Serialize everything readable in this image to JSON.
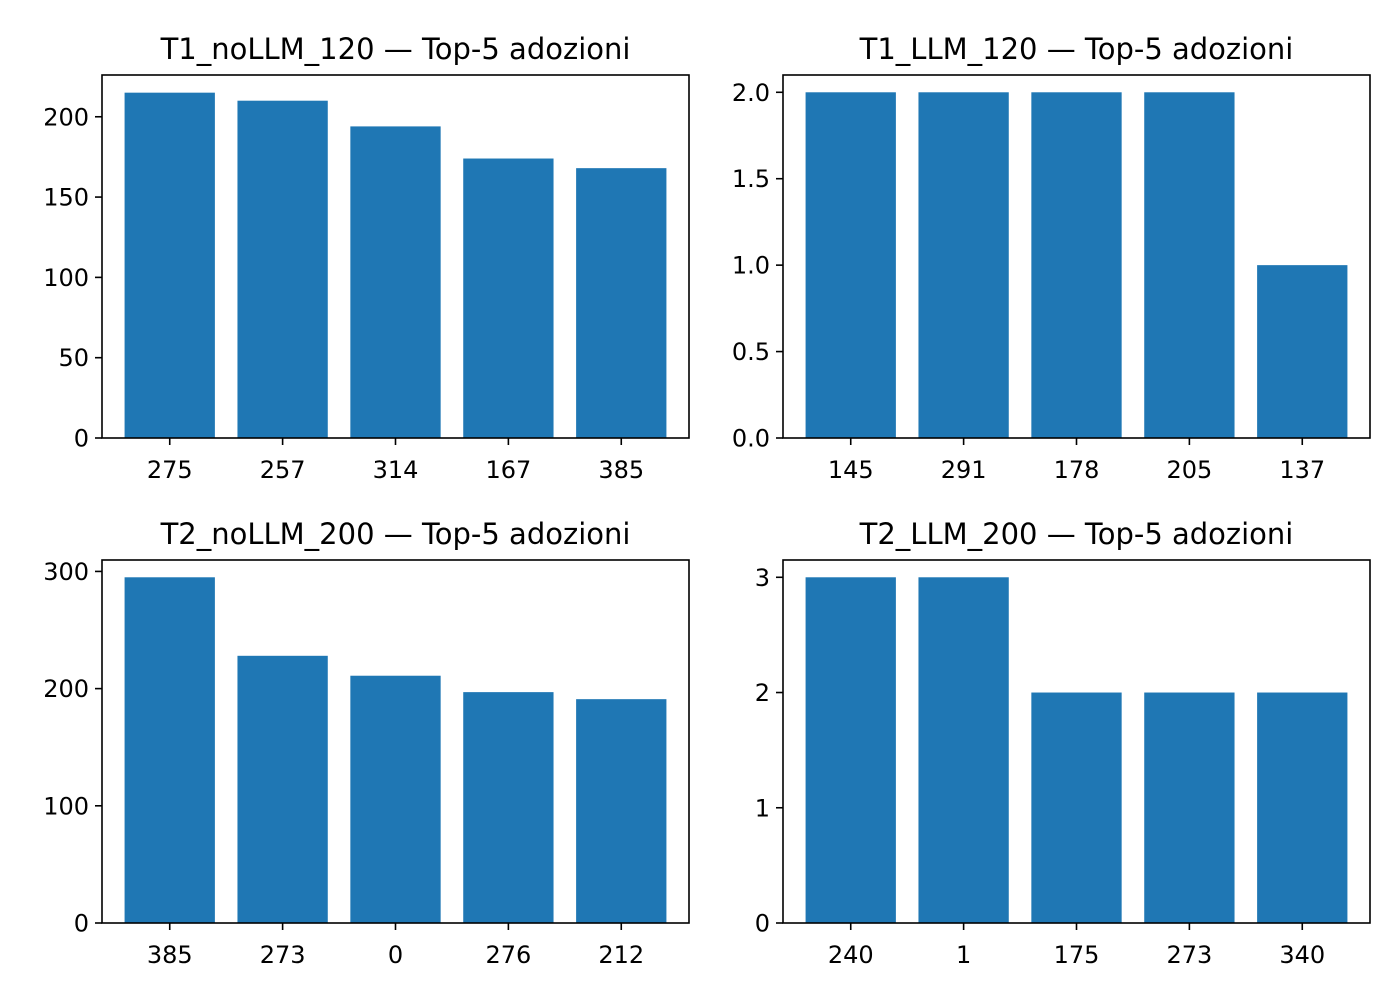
{
  "style": {
    "bar_color": "#1f77b4",
    "frame_color": "#000000",
    "background": "#ffffff"
  },
  "chart_data": [
    {
      "type": "bar",
      "title": "T1_noLLM_120 — Top-5 adozioni",
      "categories": [
        "275",
        "257",
        "314",
        "167",
        "385"
      ],
      "values": [
        215,
        210,
        194,
        174,
        168
      ],
      "ylim": [
        0,
        226
      ],
      "yticks": [
        0,
        50,
        100,
        150,
        200
      ],
      "grid": false
    },
    {
      "type": "bar",
      "title": "T1_LLM_120 — Top-5 adozioni",
      "categories": [
        "145",
        "291",
        "178",
        "205",
        "137"
      ],
      "values": [
        2,
        2,
        2,
        2,
        1
      ],
      "ylim": [
        0,
        2.1
      ],
      "yticks": [
        "0.0",
        "0.5",
        "1.0",
        "1.5",
        "2.0"
      ],
      "grid": false
    },
    {
      "type": "bar",
      "title": "T2_noLLM_200 — Top-5 adozioni",
      "categories": [
        "385",
        "273",
        "0",
        "276",
        "212"
      ],
      "values": [
        295,
        228,
        211,
        197,
        191
      ],
      "ylim": [
        0,
        309.75
      ],
      "yticks": [
        0,
        100,
        200,
        300
      ],
      "grid": false
    },
    {
      "type": "bar",
      "title": "T2_LLM_200 — Top-5 adozioni",
      "categories": [
        "240",
        "1",
        "175",
        "273",
        "340"
      ],
      "values": [
        3,
        3,
        2,
        2,
        2
      ],
      "ylim": [
        0,
        3.15
      ],
      "yticks": [
        0,
        1,
        2,
        3
      ],
      "grid": false
    }
  ]
}
